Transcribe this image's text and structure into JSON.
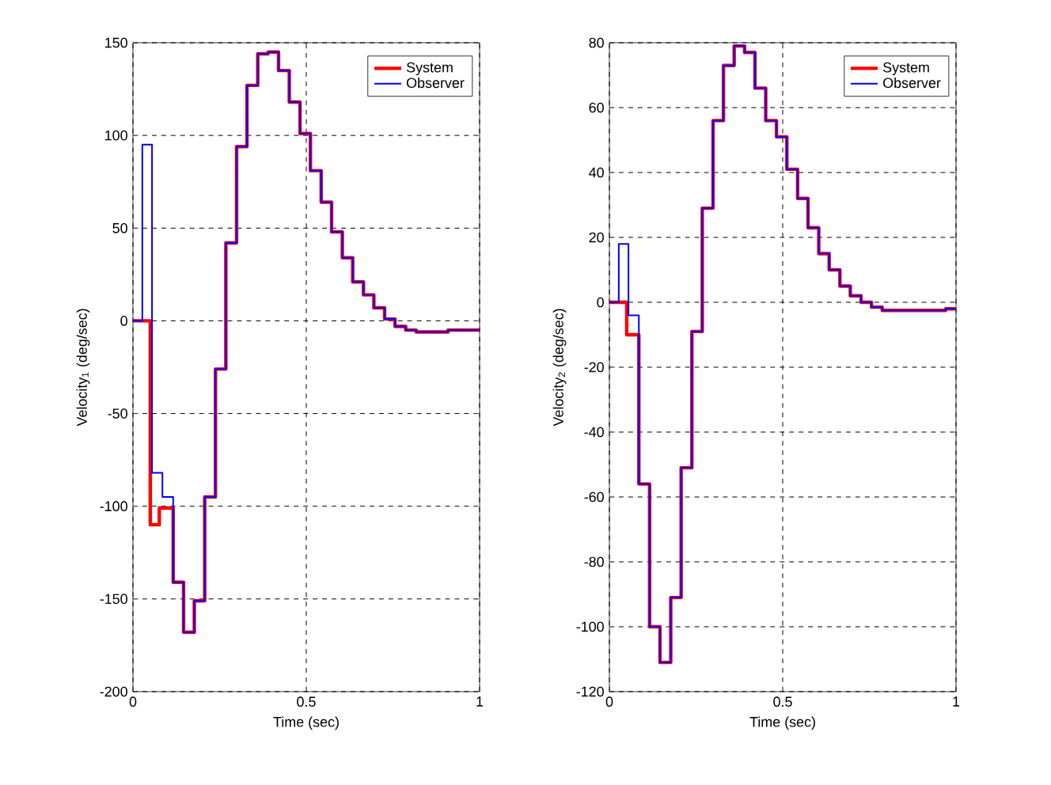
{
  "chart_data": [
    {
      "type": "step",
      "xlabel": "Time (sec)",
      "ylabel": "Velocity$_{1}$ (deg/sec)",
      "xlim": [
        0,
        1
      ],
      "ylim": [
        -200,
        150
      ],
      "xticks": [
        0,
        0.5,
        1
      ],
      "yticks": [
        -200,
        -150,
        -100,
        -50,
        0,
        50,
        100,
        150
      ],
      "grid": true,
      "legend": "top right",
      "line_style": "solid",
      "series": [
        {
          "name": "System",
          "color": "#ff0000",
          "x": [
            0,
            0.05,
            0.076,
            0.116,
            0.146,
            0.177,
            0.207,
            0.238,
            0.268,
            0.299,
            0.329,
            0.36,
            0.39,
            0.42,
            0.451,
            0.482,
            0.512,
            0.543,
            0.573,
            0.604,
            0.634,
            0.665,
            0.695,
            0.726,
            0.756,
            0.787,
            0.817,
            0.848,
            0.878,
            0.909,
            0.939,
            0.97,
            1.0
          ],
          "values": [
            0,
            -110,
            -101,
            -141,
            -168,
            -151,
            -95,
            -26,
            42,
            94,
            127,
            144,
            145,
            135,
            118,
            101,
            81,
            64,
            48,
            34,
            21,
            14,
            7,
            1,
            -3,
            -5,
            -6,
            -6,
            -6,
            -5,
            -5,
            -5,
            -5
          ]
        },
        {
          "name": "Observer",
          "color": "#0000ff",
          "x": [
            0,
            0.027,
            0.055,
            0.085,
            0.116,
            0.146,
            0.177,
            0.207,
            0.238,
            0.268,
            0.299,
            0.329,
            0.36,
            0.39,
            0.42,
            0.451,
            0.482,
            0.512,
            0.543,
            0.573,
            0.604,
            0.634,
            0.665,
            0.695,
            0.726,
            0.756,
            0.787,
            0.817,
            0.848,
            0.878,
            0.909,
            0.939,
            0.97,
            1.0
          ],
          "values": [
            0,
            95,
            -82,
            -95,
            -141,
            -168,
            -151,
            -95,
            -26,
            42,
            94,
            127,
            144,
            145,
            135,
            118,
            101,
            81,
            64,
            48,
            34,
            21,
            14,
            7,
            1,
            -3,
            -5,
            -6,
            -6,
            -6,
            -5,
            -5,
            -5,
            -5
          ]
        }
      ]
    },
    {
      "type": "step",
      "xlabel": "Time (sec)",
      "ylabel": "Velocity$_{2}$ (deg/sec)",
      "xlim": [
        0,
        1
      ],
      "ylim": [
        -120,
        80
      ],
      "xticks": [
        0,
        0.5,
        1
      ],
      "yticks": [
        -120,
        -100,
        -80,
        -60,
        -40,
        -20,
        0,
        20,
        40,
        60,
        80
      ],
      "grid": true,
      "legend": "top right",
      "line_style": "solid",
      "series": [
        {
          "name": "System",
          "color": "#ff0000",
          "x": [
            0,
            0.05,
            0.085,
            0.116,
            0.146,
            0.177,
            0.207,
            0.238,
            0.268,
            0.299,
            0.329,
            0.36,
            0.39,
            0.42,
            0.451,
            0.482,
            0.512,
            0.543,
            0.573,
            0.604,
            0.634,
            0.665,
            0.695,
            0.726,
            0.756,
            0.787,
            0.817,
            0.848,
            0.878,
            0.909,
            0.939,
            0.97,
            1.0
          ],
          "values": [
            0,
            -10,
            -56,
            -100,
            -111,
            -91,
            -51,
            -9,
            29,
            56,
            73,
            79,
            77,
            66,
            56,
            51,
            41,
            32,
            23,
            15,
            10,
            5,
            2,
            0,
            -1.5,
            -2.5,
            -2.5,
            -2.5,
            -2.5,
            -2.5,
            -2.5,
            -2,
            -2
          ]
        },
        {
          "name": "Observer",
          "color": "#0000ff",
          "x": [
            0,
            0.027,
            0.055,
            0.085,
            0.116,
            0.146,
            0.177,
            0.207,
            0.238,
            0.268,
            0.299,
            0.329,
            0.36,
            0.39,
            0.42,
            0.451,
            0.482,
            0.512,
            0.543,
            0.573,
            0.604,
            0.634,
            0.665,
            0.695,
            0.726,
            0.756,
            0.787,
            0.817,
            0.848,
            0.878,
            0.909,
            0.939,
            0.97,
            1.0
          ],
          "values": [
            0,
            18,
            -4,
            -56,
            -100,
            -111,
            -91,
            -51,
            -9,
            29,
            56,
            73,
            79,
            77,
            66,
            56,
            51,
            41,
            32,
            23,
            15,
            10,
            5,
            2,
            0,
            -1.5,
            -2.5,
            -2.5,
            -2.5,
            -2.5,
            -2.5,
            -2.5,
            -2,
            -2
          ]
        }
      ]
    }
  ]
}
